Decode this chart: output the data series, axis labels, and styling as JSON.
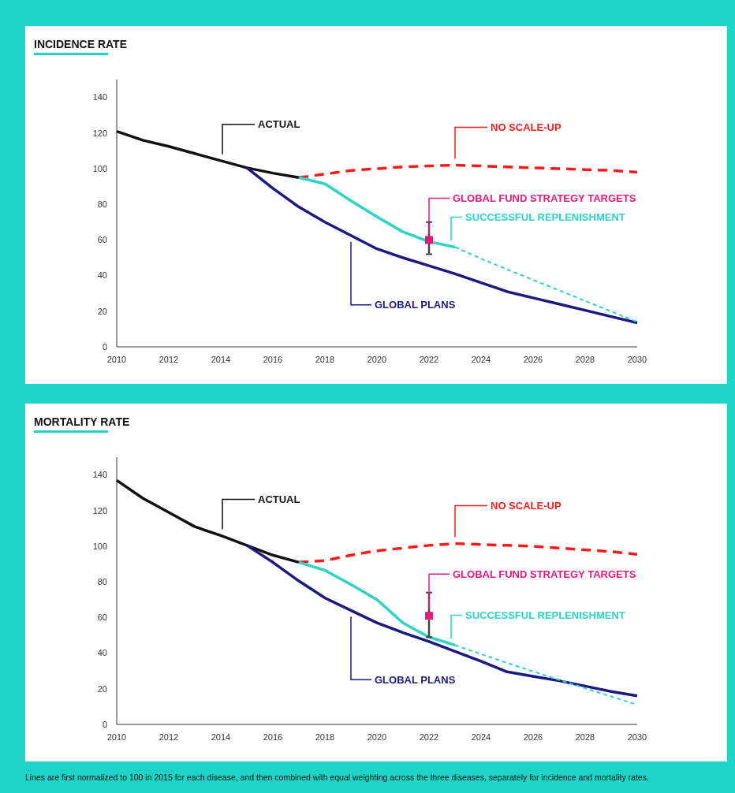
{
  "chart_data": [
    {
      "type": "line",
      "title": "INCIDENCE RATE",
      "xlim": [
        2010,
        2030
      ],
      "xticks": [
        2010,
        2012,
        2014,
        2016,
        2018,
        2020,
        2022,
        2024,
        2026,
        2028,
        2030
      ],
      "ylim": [
        0,
        150
      ],
      "yticks": [
        0,
        20,
        40,
        60,
        80,
        100,
        120,
        140
      ],
      "series": [
        {
          "name": "ACTUAL",
          "color": "#111111",
          "line_style": "solid",
          "marker": "none",
          "x": [
            2010,
            2011,
            2012,
            2013,
            2014,
            2015,
            2016,
            2017
          ],
          "values": [
            121,
            116,
            112.5,
            108.5,
            104.5,
            100.5,
            97.5,
            95
          ]
        },
        {
          "name": "NO SCALE-UP",
          "color": "#ff1a1a",
          "line_style": "dashed",
          "marker": "none",
          "x": [
            2017,
            2018,
            2019,
            2020,
            2021,
            2022,
            2023,
            2024,
            2025,
            2026,
            2027,
            2028,
            2029,
            2030
          ],
          "values": [
            95,
            97,
            99,
            100,
            101,
            101.5,
            102,
            101.5,
            101,
            100.5,
            100,
            99.5,
            99,
            98
          ]
        },
        {
          "name": "GLOBAL PLANS",
          "color": "#1a1a80",
          "line_style": "solid",
          "marker": "none",
          "x": [
            2015,
            2016,
            2017,
            2018,
            2019,
            2020,
            2021,
            2022,
            2023,
            2024,
            2025,
            2026,
            2027,
            2028,
            2029,
            2030
          ],
          "values": [
            100.5,
            89,
            78.5,
            70,
            62.5,
            55,
            50,
            45.5,
            41,
            36,
            31,
            27.5,
            24,
            20.5,
            17,
            13.5
          ]
        },
        {
          "name": "SUCCESSFUL REPLENISHMENT",
          "color": "#2ed3c6",
          "line_style": "solid",
          "marker": "none",
          "x": [
            2017,
            2018,
            2019,
            2020,
            2021,
            2022,
            2023
          ],
          "values": [
            95,
            91.5,
            82,
            73,
            64.5,
            59,
            56
          ]
        },
        {
          "color": "#2ed3c6",
          "line_style": "dashed",
          "marker": "none",
          "x": [
            2023,
            2024,
            2025,
            2030
          ],
          "values": [
            56,
            49.5,
            43.5,
            14
          ]
        },
        {
          "type": "scatter",
          "name": "GLOBAL FUND STRATEGY TARGETS",
          "color": "#e6197a",
          "marker": "square",
          "x": [
            2022
          ],
          "values": [
            60
          ],
          "errors": [
            [
              52,
              70
            ]
          ]
        }
      ]
    },
    {
      "type": "line",
      "title": "MORTALITY RATE",
      "xlim": [
        2010,
        2030
      ],
      "xticks": [
        2010,
        2012,
        2014,
        2016,
        2018,
        2020,
        2022,
        2024,
        2026,
        2028,
        2030
      ],
      "ylim": [
        0,
        150
      ],
      "yticks": [
        0,
        20,
        40,
        60,
        80,
        100,
        120,
        140
      ],
      "annotations": [
        "Lines are first normalized to 100 in 2015 for each disease, and then combined with equal weighting across the three diseases, separately for incidence and mortality rates."
      ],
      "series": [
        {
          "name": "ACTUAL",
          "color": "#111111",
          "line_style": "solid",
          "marker": "none",
          "x": [
            2010,
            2011,
            2012,
            2013,
            2014,
            2015,
            2016,
            2017
          ],
          "values": [
            137,
            127,
            119,
            111,
            106,
            100.5,
            95,
            91
          ]
        },
        {
          "name": "NO SCALE-UP",
          "color": "#ff1a1a",
          "line_style": "dashed",
          "marker": "none",
          "x": [
            2017,
            2018,
            2019,
            2020,
            2021,
            2022,
            2023,
            2024,
            2025,
            2026,
            2027,
            2028,
            2029,
            2030
          ],
          "values": [
            91,
            92,
            95,
            97.5,
            99,
            100.5,
            101.5,
            101,
            100.5,
            100,
            99,
            98,
            97,
            95.5
          ]
        },
        {
          "name": "GLOBAL PLANS",
          "color": "#1a1a80",
          "line_style": "solid",
          "marker": "none",
          "x": [
            2015,
            2016,
            2017,
            2018,
            2019,
            2020,
            2021,
            2022,
            2023,
            2024,
            2025,
            2026,
            2027,
            2028,
            2029,
            2030
          ],
          "values": [
            100.5,
            91,
            80.5,
            71,
            64,
            57,
            51.5,
            46.5,
            41,
            35.5,
            29.5,
            27,
            24.5,
            21.5,
            18.5,
            16
          ]
        },
        {
          "name": "SUCCESSFUL REPLENISHMENT",
          "color": "#2ed3c6",
          "line_style": "solid",
          "marker": "none",
          "x": [
            2017,
            2018,
            2019,
            2020,
            2021,
            2022,
            2023
          ],
          "values": [
            91,
            86.5,
            78.5,
            70,
            57,
            49,
            44.5
          ]
        },
        {
          "color": "#2ed3c6",
          "line_style": "dashed",
          "marker": "none",
          "x": [
            2023,
            2025,
            2027,
            2030
          ],
          "values": [
            44.5,
            34.5,
            25,
            11
          ]
        },
        {
          "type": "scatter",
          "name": "GLOBAL FUND STRATEGY TARGETS",
          "color": "#e6197a",
          "marker": "square",
          "x": [
            2022
          ],
          "values": [
            61
          ],
          "errors": [
            [
              49,
              74
            ]
          ]
        }
      ]
    }
  ]
}
